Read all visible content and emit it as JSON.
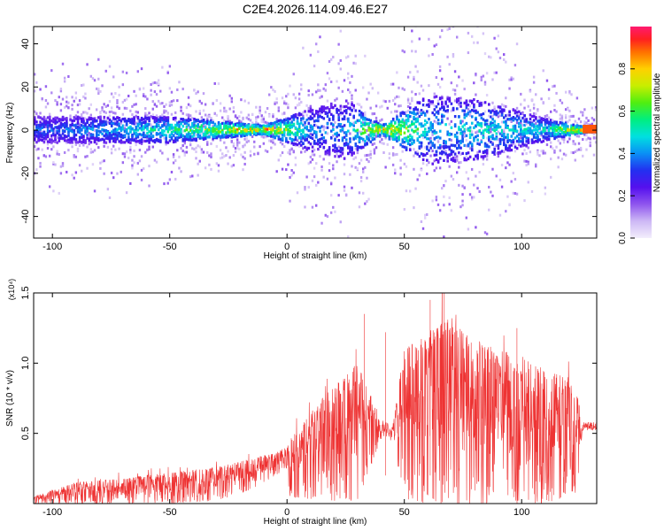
{
  "figure_title": "C2E4.2026.114.09.46.E27",
  "chart_data": [
    {
      "type": "heatmap",
      "panel": "spectrogram",
      "title": "C2E4.2026.114.09.46.E27",
      "xlabel": "Height of straight line (km)",
      "ylabel": "Frequency (Hz)",
      "xlim": [
        -108,
        132
      ],
      "ylim": [
        -50,
        48
      ],
      "xticks": [
        "-100",
        "-50",
        "0",
        "50",
        "100"
      ],
      "yticks": [
        "40",
        "20",
        "0",
        "-20",
        "-40"
      ],
      "colorbar": {
        "label": "Normalized spectral amplitude",
        "range": [
          0,
          1
        ],
        "ticks": [
          "0.0",
          "0.2",
          "0.4",
          "0.6",
          "0.8"
        ]
      },
      "description_points": [
        {
          "x": -100,
          "spread_hz": 6,
          "peak_amp": 0.3
        },
        {
          "x": -50,
          "spread_hz": 6,
          "peak_amp": 0.5
        },
        {
          "x": -10,
          "spread_hz": 2,
          "peak_amp": 0.9
        },
        {
          "x": 10,
          "spread_hz": 10,
          "peak_amp": 0.35
        },
        {
          "x": 25,
          "spread_hz": 14,
          "peak_amp": 0.35
        },
        {
          "x": 40,
          "spread_hz": 2,
          "peak_amp": 0.9
        },
        {
          "x": 60,
          "spread_hz": 16,
          "peak_amp": 0.4
        },
        {
          "x": 80,
          "spread_hz": 14,
          "peak_amp": 0.45
        },
        {
          "x": 110,
          "spread_hz": 5,
          "peak_amp": 0.45
        },
        {
          "x": 128,
          "spread_hz": 1,
          "peak_amp": 1.0
        }
      ]
    },
    {
      "type": "line",
      "panel": "snr",
      "xlabel": "Height of straight line (km)",
      "ylabel": "SNR (10 * v/v)",
      "y_multiplier": "(x10⁴)",
      "xlim": [
        -108,
        132
      ],
      "ylim": [
        0,
        1.5
      ],
      "xticks": [
        "-100",
        "-50",
        "0",
        "50",
        "100"
      ],
      "yticks": [
        "1.5",
        "1.0",
        "0.5"
      ],
      "line_color": "#ee3333",
      "envelope": {
        "x": [
          -108,
          -90,
          -70,
          -50,
          -30,
          -15,
          -5,
          0,
          1,
          15,
          30,
          40,
          45,
          50,
          60,
          70,
          80,
          90,
          100,
          110,
          120,
          124,
          126,
          132
        ],
        "y_low": [
          0.0,
          0.0,
          0.0,
          0.0,
          0.02,
          0.1,
          0.2,
          0.25,
          0.05,
          0.02,
          0.02,
          0.45,
          0.45,
          0.03,
          0.0,
          0.0,
          0.0,
          0.0,
          0.0,
          0.0,
          0.05,
          0.05,
          0.52,
          0.52
        ],
        "y_high": [
          0.05,
          0.15,
          0.18,
          0.22,
          0.26,
          0.32,
          0.37,
          0.4,
          0.45,
          0.75,
          1.0,
          0.6,
          0.55,
          1.1,
          1.2,
          1.35,
          1.15,
          1.1,
          1.05,
          0.95,
          0.9,
          0.75,
          0.58,
          0.58
        ]
      },
      "peaks": [
        {
          "x": 67,
          "y": 1.5
        },
        {
          "x": 61,
          "y": 1.45
        },
        {
          "x": 33,
          "y": 1.35
        },
        {
          "x": 98,
          "y": 1.25
        },
        {
          "x": 42,
          "y": 1.22
        }
      ]
    }
  ]
}
